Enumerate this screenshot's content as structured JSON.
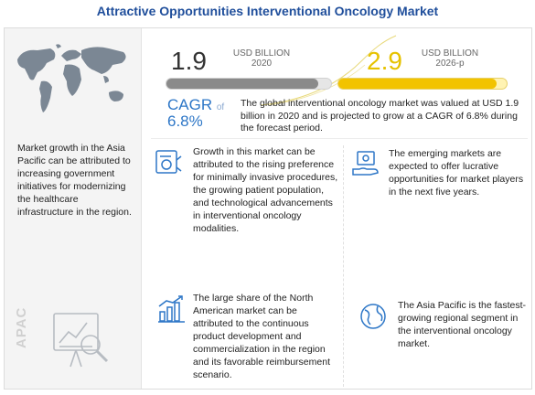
{
  "title": "Attractive Opportunities Interventional Oncology Market",
  "metrics": {
    "value_2020": "1.9",
    "unit_2020_line1": "USD BILLION",
    "unit_2020_line2": "2020",
    "value_2026": "2.9",
    "unit_2026_line1": "USD BILLION",
    "unit_2026_line2": "2026-p",
    "fill_2020": 0.92,
    "fill_2026": 0.94
  },
  "cagr": {
    "label": "CAGR",
    "of": "of",
    "value": "6.8%"
  },
  "summary": "The global interventional oncology market was valued at USD 1.9 billion in 2020 and is projected to grow at a CAGR of 6.8% during the forecast period.",
  "left_panel": {
    "text": "Market growth in the Asia Pacific can be attributed to increasing government initiatives for modernizing the healthcare infrastructure in the region.",
    "region_label": "APAC"
  },
  "cards": {
    "growth": "Growth in this market can be attributed to the rising preference for minimally invasive procedures, the growing patient population, and technological advancements in interventional oncology modalities.",
    "emerging": "The emerging markets are expected to offer lucrative opportunities for market players in the next five years.",
    "north_america": "The large share of the North American market can be attributed to the continuous product development and commercialization in the region and its favorable reimbursement scenario.",
    "asia_pacific": "The Asia Pacific is the fastest-growing regional segment in the interventional oncology market."
  },
  "colors": {
    "title": "#1f4e9b",
    "cagr": "#2e77c7",
    "bar_2020": "#8a8a8a",
    "bar_2026": "#f2c300",
    "icon": "#2e77c7"
  },
  "icons": [
    "world-map-icon",
    "apac-analytics-icon",
    "medical-device-icon",
    "money-hand-icon",
    "bar-chart-growth-icon",
    "globe-icon"
  ]
}
